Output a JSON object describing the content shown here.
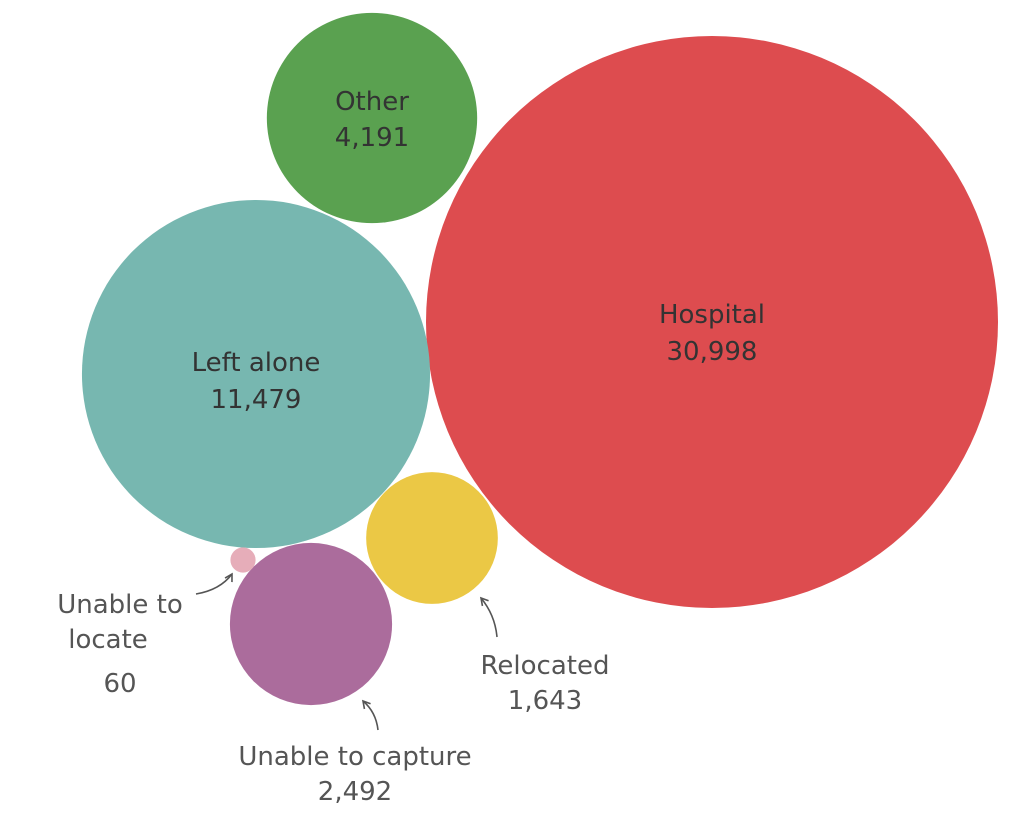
{
  "chart_data": {
    "type": "bubble",
    "title": "",
    "items": [
      {
        "label": "Hospital",
        "value": 30998,
        "value_label": "30,998",
        "color": "#dd4c4f",
        "label_position": "inside"
      },
      {
        "label": "Left alone",
        "value": 11479,
        "value_label": "11,479",
        "color": "#77b7b0",
        "label_position": "inside"
      },
      {
        "label": "Other",
        "value": 4191,
        "value_label": "4,191",
        "color": "#5aa150",
        "label_position": "inside"
      },
      {
        "label": "Unable to capture",
        "value": 2492,
        "value_label": "2,492",
        "color": "#ab6c9c",
        "label_position": "outside"
      },
      {
        "label": "Relocated",
        "value": 1643,
        "value_label": "1,643",
        "color": "#ebc845",
        "label_position": "outside"
      },
      {
        "label": "Unable to locate",
        "value": 60,
        "value_label": "60",
        "color": "#e6adb9",
        "label_position": "outside"
      }
    ]
  }
}
